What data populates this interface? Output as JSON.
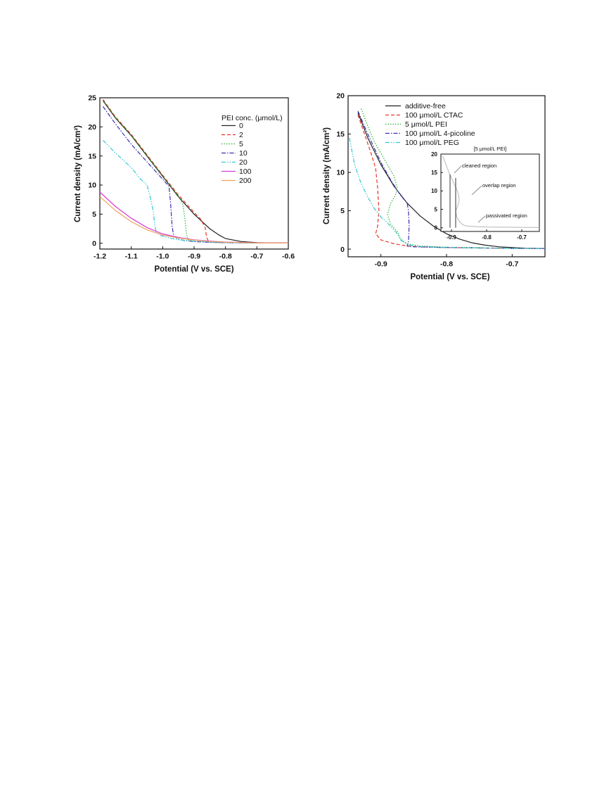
{
  "chart_data": [
    {
      "type": "line",
      "xlabel": "Potential (V vs. SCE)",
      "ylabel": "Current density (mA/cm²)",
      "xlim": [
        -1.2,
        -0.6
      ],
      "ylim": [
        -1,
        25
      ],
      "xticks": [
        "-1.2",
        "-1.1",
        "-1.0",
        "-0.9",
        "-0.8",
        "-0.7",
        "-0.6"
      ],
      "yticks": [
        "0",
        "5",
        "10",
        "15",
        "20",
        "25"
      ],
      "legend_title": "PEI conc. (μmol/L)",
      "legend_position": "top-right",
      "series": [
        {
          "name": "0",
          "color": "#222222",
          "dash": "solid",
          "points": [
            [
              -1.19,
              24.5
            ],
            [
              -1.15,
              21.5
            ],
            [
              -1.1,
              18.5
            ],
            [
              -1.05,
              15
            ],
            [
              -1.0,
              11.5
            ],
            [
              -0.95,
              8
            ],
            [
              -0.9,
              5
            ],
            [
              -0.87,
              3.5
            ],
            [
              -0.85,
              2.5
            ],
            [
              -0.82,
              1.4
            ],
            [
              -0.8,
              0.8
            ],
            [
              -0.75,
              0.3
            ],
            [
              -0.7,
              0.1
            ],
            [
              -0.65,
              0.05
            ],
            [
              -0.6,
              0.05
            ]
          ]
        },
        {
          "name": "2",
          "color": "#e8352b",
          "dash": "dashed",
          "points": [
            [
              -1.19,
              24.7
            ],
            [
              -1.15,
              21.7
            ],
            [
              -1.1,
              18.7
            ],
            [
              -1.05,
              15.2
            ],
            [
              -1.0,
              11.7
            ],
            [
              -0.95,
              8.3
            ],
            [
              -0.9,
              5.3
            ],
            [
              -0.88,
              4.2
            ],
            [
              -0.865,
              2.8
            ],
            [
              -0.86,
              1.0
            ],
            [
              -0.855,
              0.4
            ],
            [
              -0.83,
              0.2
            ],
            [
              -0.8,
              0.12
            ],
            [
              -0.7,
              0.05
            ],
            [
              -0.6,
              0.05
            ]
          ]
        },
        {
          "name": "5",
          "color": "#2db52d",
          "dash": "dotted",
          "points": [
            [
              -1.19,
              24.6
            ],
            [
              -1.15,
              21.6
            ],
            [
              -1.1,
              18.6
            ],
            [
              -1.05,
              15.1
            ],
            [
              -1.0,
              11.6
            ],
            [
              -0.97,
              9.5
            ],
            [
              -0.95,
              8.2
            ],
            [
              -0.935,
              6.5
            ],
            [
              -0.93,
              4.5
            ],
            [
              -0.925,
              2.0
            ],
            [
              -0.92,
              0.6
            ],
            [
              -0.9,
              0.3
            ],
            [
              -0.85,
              0.15
            ],
            [
              -0.8,
              0.1
            ],
            [
              -0.7,
              0.05
            ],
            [
              -0.6,
              0.05
            ]
          ]
        },
        {
          "name": "10",
          "color": "#3a2fb0",
          "dash": "dashdot",
          "points": [
            [
              -1.19,
              23.5
            ],
            [
              -1.15,
              20.5
            ],
            [
              -1.1,
              17
            ],
            [
              -1.05,
              14
            ],
            [
              -1.0,
              11
            ],
            [
              -0.98,
              9.8
            ],
            [
              -0.975,
              7
            ],
            [
              -0.97,
              3
            ],
            [
              -0.965,
              1.2
            ],
            [
              -0.95,
              0.7
            ],
            [
              -0.93,
              0.45
            ],
            [
              -0.9,
              0.3
            ],
            [
              -0.85,
              0.15
            ],
            [
              -0.8,
              0.1
            ],
            [
              -0.7,
              0.05
            ],
            [
              -0.6,
              0.05
            ]
          ]
        },
        {
          "name": "20",
          "color": "#35c6d8",
          "dash": "dashdotdot",
          "points": [
            [
              -1.19,
              17.7
            ],
            [
              -1.15,
              15.5
            ],
            [
              -1.1,
              13
            ],
            [
              -1.07,
              11
            ],
            [
              -1.05,
              10
            ],
            [
              -1.04,
              8
            ],
            [
              -1.03,
              5.5
            ],
            [
              -1.025,
              3
            ],
            [
              -1.02,
              1.8
            ],
            [
              -1.0,
              1.2
            ],
            [
              -0.97,
              0.8
            ],
            [
              -0.95,
              0.6
            ],
            [
              -0.9,
              0.35
            ],
            [
              -0.85,
              0.2
            ],
            [
              -0.8,
              0.12
            ],
            [
              -0.7,
              0.05
            ],
            [
              -0.6,
              0.05
            ]
          ]
        },
        {
          "name": "100",
          "color": "#d63bd6",
          "dash": "solid",
          "points": [
            [
              -1.2,
              8.8
            ],
            [
              -1.15,
              6.3
            ],
            [
              -1.1,
              4.3
            ],
            [
              -1.05,
              2.7
            ],
            [
              -1.0,
              1.6
            ],
            [
              -0.95,
              1.0
            ],
            [
              -0.9,
              0.6
            ],
            [
              -0.85,
              0.35
            ],
            [
              -0.8,
              0.2
            ],
            [
              -0.7,
              0.08
            ],
            [
              -0.6,
              0.05
            ]
          ]
        },
        {
          "name": "200",
          "color": "#f0a35a",
          "dash": "solid",
          "points": [
            [
              -1.2,
              8.0
            ],
            [
              -1.15,
              5.6
            ],
            [
              -1.1,
              3.7
            ],
            [
              -1.05,
              2.3
            ],
            [
              -1.0,
              1.4
            ],
            [
              -0.95,
              0.9
            ],
            [
              -0.9,
              0.55
            ],
            [
              -0.85,
              0.3
            ],
            [
              -0.8,
              0.18
            ],
            [
              -0.7,
              0.07
            ],
            [
              -0.6,
              0.05
            ]
          ]
        }
      ]
    },
    {
      "type": "line",
      "xlabel": "Potential (V vs. SCE)",
      "ylabel": "Current density (mA/cm²)",
      "xlim": [
        -0.95,
        -0.65
      ],
      "ylim": [
        -1,
        20
      ],
      "xticks": [
        "-0.9",
        "-0.8",
        "-0.7"
      ],
      "yticks": [
        "0",
        "5",
        "10",
        "15",
        "20"
      ],
      "legend_position": "top-left",
      "series": [
        {
          "name": "additive-free",
          "color": "#222222",
          "dash": "solid",
          "points": [
            [
              -0.935,
              17.8
            ],
            [
              -0.92,
              14.5
            ],
            [
              -0.9,
              11.0
            ],
            [
              -0.88,
              8.2
            ],
            [
              -0.86,
              6.0
            ],
            [
              -0.84,
              4.3
            ],
            [
              -0.82,
              3.0
            ],
            [
              -0.8,
              2.0
            ],
            [
              -0.78,
              1.3
            ],
            [
              -0.76,
              0.8
            ],
            [
              -0.74,
              0.5
            ],
            [
              -0.72,
              0.3
            ],
            [
              -0.7,
              0.2
            ],
            [
              -0.68,
              0.12
            ],
            [
              -0.65,
              0.08
            ]
          ]
        },
        {
          "name": "100 μmol/L CTAC",
          "color": "#e8352b",
          "dash": "dashed",
          "points": [
            [
              -0.935,
              17.5
            ],
            [
              -0.925,
              15.0
            ],
            [
              -0.915,
              12.5
            ],
            [
              -0.908,
              10.5
            ],
            [
              -0.905,
              8.0
            ],
            [
              -0.903,
              5.0
            ],
            [
              -0.905,
              3.0
            ],
            [
              -0.908,
              2.0
            ],
            [
              -0.9,
              1.2
            ],
            [
              -0.88,
              0.7
            ],
            [
              -0.86,
              0.4
            ],
            [
              -0.84,
              0.3
            ],
            [
              -0.8,
              0.2
            ],
            [
              -0.7,
              0.1
            ],
            [
              -0.65,
              0.08
            ]
          ]
        },
        {
          "name": "5 μmol/L PEI",
          "color": "#2db52d",
          "dash": "dotted",
          "points": [
            [
              -0.93,
              18.3
            ],
            [
              -0.92,
              16.0
            ],
            [
              -0.91,
              14.0
            ],
            [
              -0.9,
              12.5
            ],
            [
              -0.89,
              11.0
            ],
            [
              -0.88,
              9.5
            ],
            [
              -0.875,
              8.0
            ],
            [
              -0.878,
              7.0
            ],
            [
              -0.885,
              6.0
            ],
            [
              -0.89,
              4.5
            ],
            [
              -0.885,
              3.2
            ],
            [
              -0.875,
              2.3
            ],
            [
              -0.87,
              1.3
            ],
            [
              -0.86,
              0.7
            ],
            [
              -0.84,
              0.4
            ],
            [
              -0.8,
              0.25
            ],
            [
              -0.7,
              0.1
            ],
            [
              -0.65,
              0.08
            ]
          ]
        },
        {
          "name": "100 μmol/L 4-picoline",
          "color": "#3a2fb0",
          "dash": "dashdot",
          "points": [
            [
              -0.935,
              18.0
            ],
            [
              -0.92,
              15.0
            ],
            [
              -0.9,
              11.3
            ],
            [
              -0.885,
              9.0
            ],
            [
              -0.87,
              7.0
            ],
            [
              -0.86,
              6.0
            ],
            [
              -0.858,
              5.0
            ],
            [
              -0.857,
              3.0
            ],
            [
              -0.858,
              1.0
            ],
            [
              -0.86,
              0.4
            ],
            [
              -0.85,
              0.3
            ],
            [
              -0.8,
              0.2
            ],
            [
              -0.7,
              0.1
            ],
            [
              -0.65,
              0.08
            ]
          ]
        },
        {
          "name": "100 μmol/L PEG",
          "color": "#35c6d8",
          "dash": "dashdotdot",
          "points": [
            [
              -0.948,
              14.5
            ],
            [
              -0.94,
              11.0
            ],
            [
              -0.93,
              8.5
            ],
            [
              -0.92,
              6.8
            ],
            [
              -0.91,
              5.3
            ],
            [
              -0.9,
              4.2
            ],
            [
              -0.89,
              3.4
            ],
            [
              -0.88,
              2.5
            ],
            [
              -0.875,
              2.0
            ],
            [
              -0.87,
              1.2
            ],
            [
              -0.86,
              0.6
            ],
            [
              -0.84,
              0.35
            ],
            [
              -0.8,
              0.2
            ],
            [
              -0.7,
              0.1
            ],
            [
              -0.65,
              0.08
            ]
          ]
        }
      ],
      "inset": {
        "title": "[5 μmol/L PEI]",
        "xlim": [
          -0.93,
          -0.65
        ],
        "ylim": [
          -1,
          20
        ],
        "xticks": [
          "-0.9",
          "-0.8",
          "-0.7"
        ],
        "yticks": [
          "0",
          "5",
          "10",
          "15",
          "20"
        ],
        "annotations": [
          "cleaned region",
          "overlap region",
          "passivated region"
        ],
        "vlines": [
          -0.904,
          -0.888
        ],
        "curve": [
          [
            -0.925,
            19.5
          ],
          [
            -0.915,
            17.0
          ],
          [
            -0.905,
            14.5
          ],
          [
            -0.895,
            12.5
          ],
          [
            -0.885,
            10.5
          ],
          [
            -0.88,
            9.0
          ],
          [
            -0.878,
            7.5
          ],
          [
            -0.882,
            6.0
          ],
          [
            -0.888,
            4.5
          ],
          [
            -0.885,
            3.0
          ],
          [
            -0.878,
            1.8
          ],
          [
            -0.87,
            1.0
          ],
          [
            -0.86,
            0.5
          ],
          [
            -0.83,
            0.3
          ],
          [
            -0.8,
            0.2
          ],
          [
            -0.7,
            0.1
          ],
          [
            -0.65,
            0.08
          ]
        ]
      }
    }
  ]
}
